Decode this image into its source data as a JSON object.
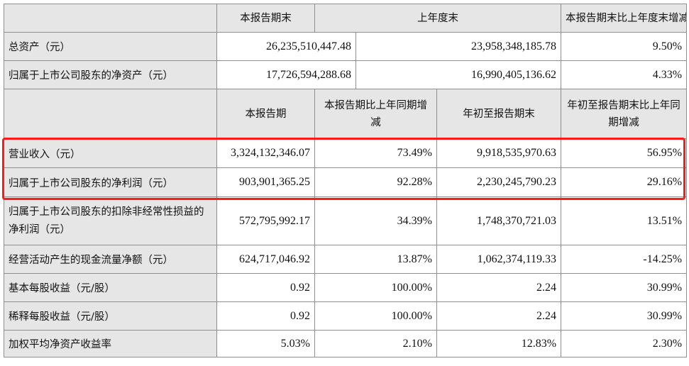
{
  "top_header": [
    "本报告期末",
    "上年度末",
    "本报告期末比上年度末增减"
  ],
  "top_rows": [
    {
      "label": "总资产（元）",
      "values": [
        "26,235,510,447.48",
        "23,958,348,185.78",
        "9.50%"
      ]
    },
    {
      "label": "归属于上市公司股东的净资产（元）",
      "values": [
        "17,726,594,288.68",
        "16,990,405,136.62",
        "4.33%"
      ]
    }
  ],
  "mid_header": [
    "本报告期",
    "本报告期比上年同期增减",
    "年初至报告期末",
    "年初至报告期末比上年同期增减"
  ],
  "rows": [
    {
      "label": "营业收入（元）",
      "values": [
        "3,324,132,346.07",
        "73.49%",
        "9,918,535,970.63",
        "56.95%"
      ]
    },
    {
      "label": "归属于上市公司股东的净利润（元）",
      "values": [
        "903,901,365.25",
        "92.28%",
        "2,230,245,790.23",
        "29.16%"
      ]
    },
    {
      "label": "归属于上市公司股东的扣除非经常性损益的净利润（元）",
      "values": [
        "572,795,992.17",
        "34.39%",
        "1,748,370,721.03",
        "13.51%"
      ]
    },
    {
      "label": "经营活动产生的现金流量净额（元）",
      "values": [
        "624,717,046.92",
        "13.87%",
        "1,062,374,119.33",
        "-14.25%"
      ]
    },
    {
      "label": "基本每股收益（元/股）",
      "values": [
        "0.92",
        "100.00%",
        "2.24",
        "30.99%"
      ]
    },
    {
      "label": "稀释每股收益（元/股）",
      "values": [
        "0.92",
        "100.00%",
        "2.24",
        "30.99%"
      ]
    },
    {
      "label": "加权平均净资产收益率",
      "values": [
        "5.03%",
        "2.10%",
        "12.83%",
        "2.30%"
      ]
    }
  ],
  "colors": {
    "header_bg": "#e6e6e6",
    "border": "#8f8f8f",
    "highlight": "#ff1a1a"
  }
}
